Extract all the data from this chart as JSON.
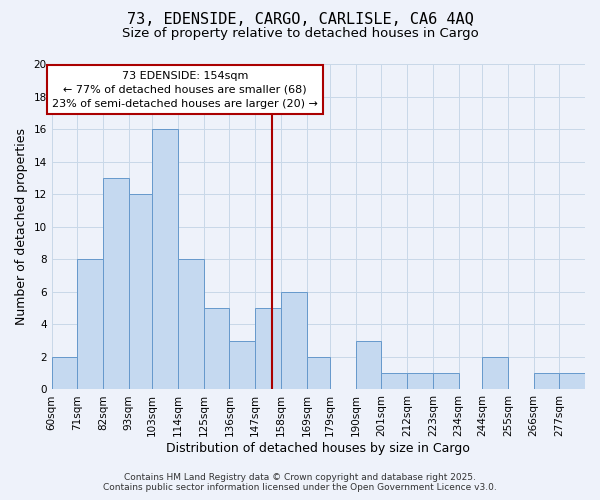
{
  "title": "73, EDENSIDE, CARGO, CARLISLE, CA6 4AQ",
  "subtitle": "Size of property relative to detached houses in Cargo",
  "xlabel": "Distribution of detached houses by size in Cargo",
  "ylabel": "Number of detached properties",
  "bar_color": "#c5d9f0",
  "bar_edge_color": "#6699cc",
  "grid_color": "#c8d8e8",
  "background_color": "#eef2fa",
  "bins": [
    60,
    71,
    82,
    93,
    103,
    114,
    125,
    136,
    147,
    158,
    169,
    179,
    190,
    201,
    212,
    223,
    234,
    244,
    255,
    266,
    277,
    288
  ],
  "counts": [
    2,
    8,
    13,
    12,
    16,
    8,
    5,
    3,
    5,
    6,
    2,
    0,
    3,
    1,
    1,
    1,
    0,
    2,
    0,
    1,
    1
  ],
  "tick_labels": [
    "60sqm",
    "71sqm",
    "82sqm",
    "93sqm",
    "103sqm",
    "114sqm",
    "125sqm",
    "136sqm",
    "147sqm",
    "158sqm",
    "169sqm",
    "179sqm",
    "190sqm",
    "201sqm",
    "212sqm",
    "223sqm",
    "234sqm",
    "244sqm",
    "255sqm",
    "266sqm",
    "277sqm"
  ],
  "vline_x": 154,
  "vline_color": "#aa0000",
  "ylim": [
    0,
    20
  ],
  "yticks": [
    0,
    2,
    4,
    6,
    8,
    10,
    12,
    14,
    16,
    18,
    20
  ],
  "annotation_title": "73 EDENSIDE: 154sqm",
  "annotation_line1": "← 77% of detached houses are smaller (68)",
  "annotation_line2": "23% of semi-detached houses are larger (20) →",
  "annotation_box_color": "#ffffff",
  "annotation_box_edge": "#aa0000",
  "footer_line1": "Contains HM Land Registry data © Crown copyright and database right 2025.",
  "footer_line2": "Contains public sector information licensed under the Open Government Licence v3.0.",
  "title_fontsize": 11,
  "subtitle_fontsize": 9.5,
  "axis_label_fontsize": 9,
  "tick_fontsize": 7.5,
  "annotation_fontsize": 8,
  "footer_fontsize": 6.5
}
